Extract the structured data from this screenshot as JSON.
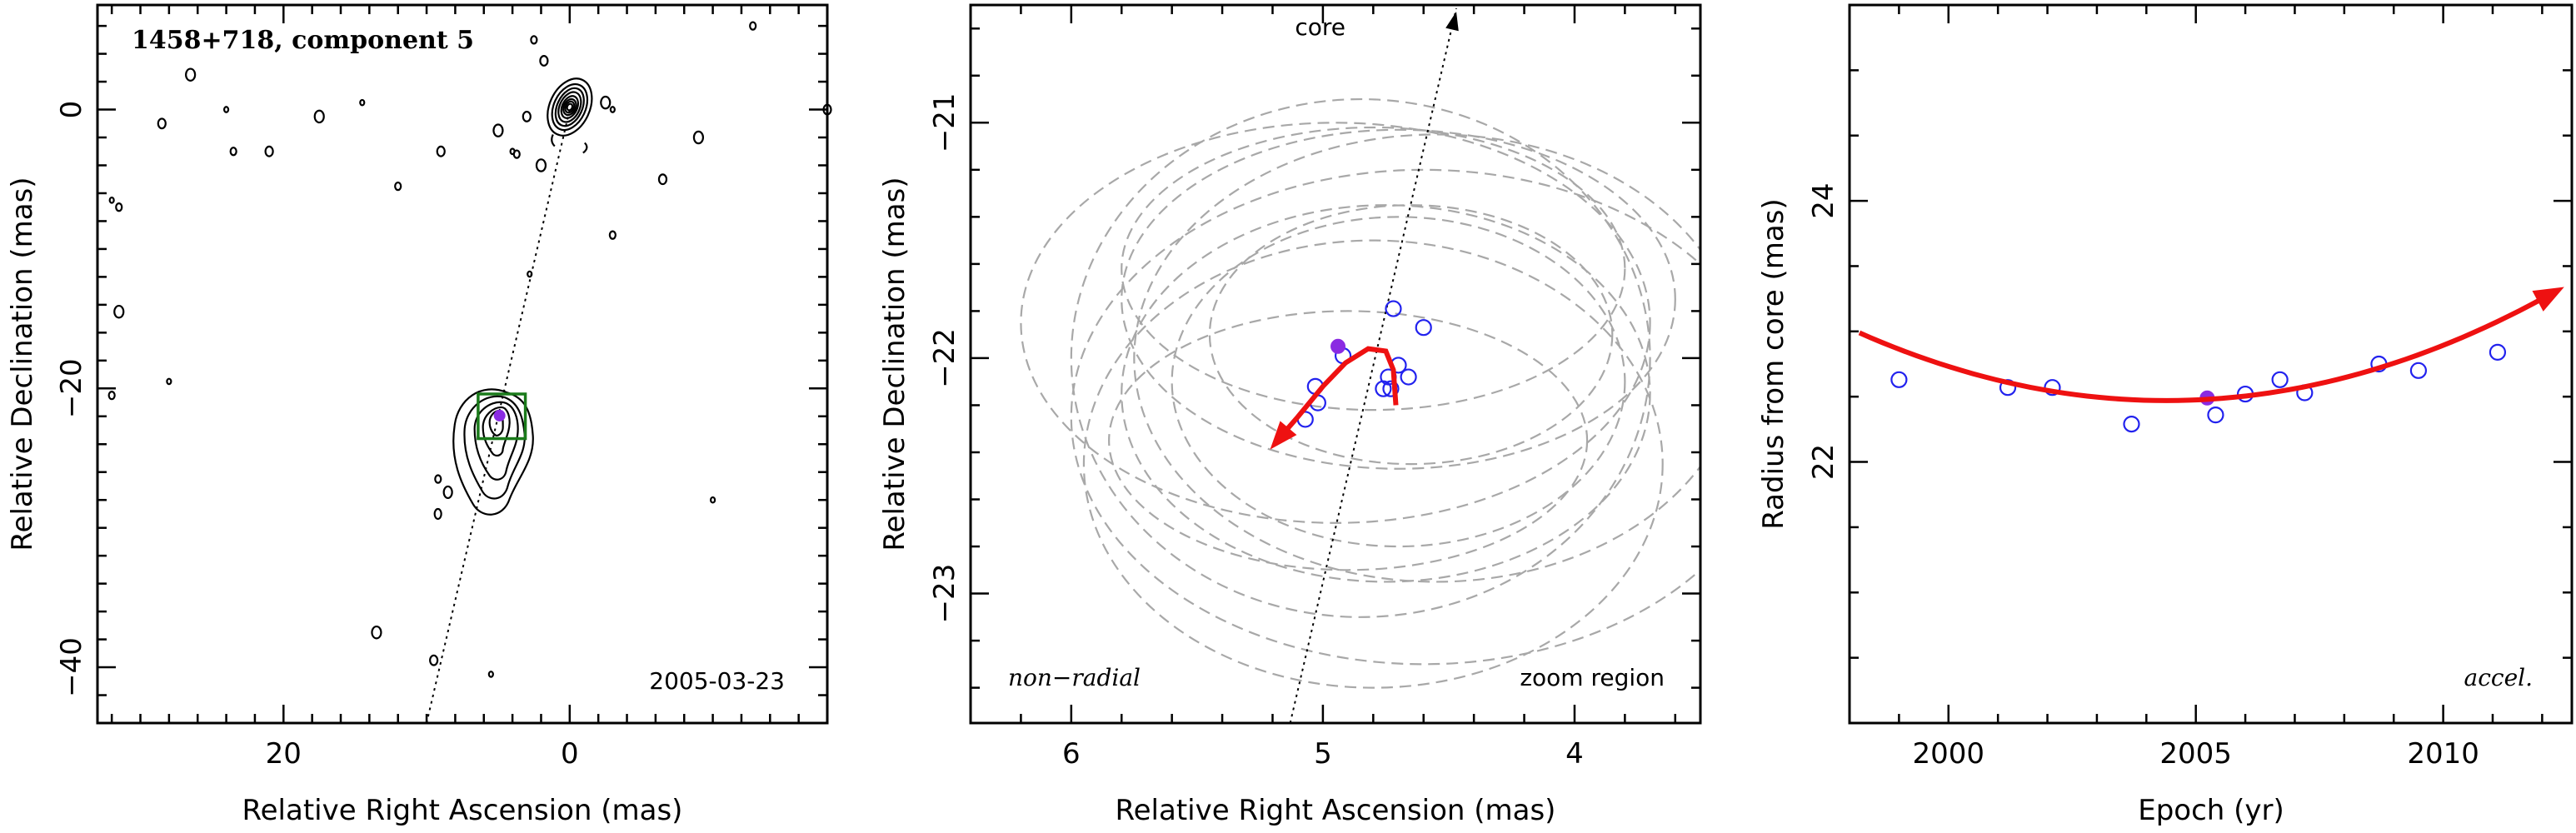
{
  "panels": {
    "left": {
      "title": "1458+718, component 5",
      "date": "2005-03-23",
      "xlabel": "Relative Right Ascension (mas)",
      "ylabel": "Relative Declination (mas)"
    },
    "middle": {
      "core_label": "core",
      "note_left": "non−radial",
      "note_right": "zoom region",
      "xlabel": "Relative Right Ascension (mas)",
      "ylabel": "Relative Declination (mas)"
    },
    "right": {
      "note": "accel.",
      "xlabel": "Epoch (yr)",
      "ylabel": "Radius from core (mas)"
    }
  },
  "colors": {
    "observation": "#2222ee",
    "highlight": "#8a2be2",
    "fit": "#ee1111",
    "beam_ellipse": "#a8a8a8",
    "zoom_box": "#1a7a1a"
  },
  "chart_data": [
    {
      "type": "scatter",
      "name": "vlba-map",
      "xlim": [
        33,
        -18
      ],
      "ylim": [
        -44,
        7.5
      ],
      "xticks": [
        20,
        0
      ],
      "xtick_labels": [
        "20",
        "0"
      ],
      "yticks": [
        0,
        -20,
        -40
      ],
      "ytick_labels": [
        "0",
        "−20",
        "−40"
      ],
      "core": [
        0,
        0
      ],
      "component_position": [
        4.9,
        -21.95
      ],
      "zoom_box": {
        "x": [
          3.1,
          6.4
        ],
        "y": [
          -20.4,
          -23.6
        ]
      },
      "pa_line": {
        "from": [
          10,
          -44
        ],
        "to": [
          0,
          0
        ]
      },
      "contour_specks": [
        [
          32,
          -6.5
        ],
        [
          31.5,
          -7
        ],
        [
          28.5,
          -1
        ],
        [
          26.5,
          2.5
        ],
        [
          24,
          0
        ],
        [
          23.5,
          -3
        ],
        [
          21,
          -3
        ],
        [
          17.5,
          -0.5
        ],
        [
          14.5,
          0.5
        ],
        [
          12,
          -5.5
        ],
        [
          9,
          -3
        ],
        [
          5,
          -1.5
        ],
        [
          4,
          -3
        ],
        [
          3.7,
          -3.2
        ],
        [
          3,
          -0.5
        ],
        [
          2,
          -4
        ],
        [
          2.8,
          -11.8
        ],
        [
          2.5,
          5
        ],
        [
          1.8,
          3.5
        ],
        [
          -2.5,
          0.5
        ],
        [
          -3,
          0
        ],
        [
          -3,
          -9
        ],
        [
          -6.5,
          -5
        ],
        [
          -9,
          -2
        ],
        [
          -10,
          -28
        ],
        [
          -12.8,
          6
        ],
        [
          -18,
          0
        ],
        [
          31.5,
          -14.5
        ],
        [
          28,
          -19.5
        ],
        [
          32,
          -20.5
        ],
        [
          9.5,
          -39.5
        ],
        [
          13.5,
          -37.5
        ],
        [
          5.5,
          -40.5
        ],
        [
          9.2,
          -26.5
        ]
      ]
    },
    {
      "type": "scatter",
      "name": "zoom-trajectory",
      "xlim": [
        6.4,
        3.5
      ],
      "ylim": [
        -23.55,
        -20.5
      ],
      "xticks": [
        6,
        5,
        4
      ],
      "xtick_labels": [
        "6",
        "5",
        "4"
      ],
      "yticks": [
        -21,
        -22,
        -23
      ],
      "ytick_labels": [
        "−21",
        "−22",
        "−23"
      ],
      "points": [
        {
          "x": 4.72,
          "y": -21.79
        },
        {
          "x": 4.6,
          "y": -21.87
        },
        {
          "x": 4.92,
          "y": -21.99
        },
        {
          "x": 4.7,
          "y": -22.03
        },
        {
          "x": 4.66,
          "y": -22.08
        },
        {
          "x": 4.74,
          "y": -22.08
        },
        {
          "x": 5.03,
          "y": -22.12
        },
        {
          "x": 4.76,
          "y": -22.13
        },
        {
          "x": 4.73,
          "y": -22.13
        },
        {
          "x": 5.02,
          "y": -22.19
        },
        {
          "x": 5.07,
          "y": -22.26
        }
      ],
      "highlight": {
        "x": 4.94,
        "y": -21.95
      },
      "fit_path": [
        [
          4.71,
          -22.2
        ],
        [
          4.72,
          -22.05
        ],
        [
          4.75,
          -21.97
        ],
        [
          4.82,
          -21.96
        ],
        [
          4.91,
          -22.02
        ],
        [
          5.0,
          -22.12
        ],
        [
          5.1,
          -22.25
        ],
        [
          5.19,
          -22.36
        ]
      ],
      "beam_ellipses": [
        {
          "cx": 4.7,
          "cy": -21.75,
          "rx": 1.1,
          "ry": 0.72
        },
        {
          "cx": 4.8,
          "cy": -21.62,
          "rx": 1.0,
          "ry": 0.6
        },
        {
          "cx": 4.85,
          "cy": -22.0,
          "rx": 1.15,
          "ry": 1.1
        },
        {
          "cx": 4.75,
          "cy": -22.15,
          "rx": 1.05,
          "ry": 0.8
        },
        {
          "cx": 4.6,
          "cy": -22.25,
          "rx": 1.4,
          "ry": 1.05
        },
        {
          "cx": 4.9,
          "cy": -22.35,
          "rx": 0.95,
          "ry": 0.55
        },
        {
          "cx": 4.7,
          "cy": -22.1,
          "rx": 0.9,
          "ry": 0.7
        },
        {
          "cx": 4.95,
          "cy": -21.85,
          "rx": 1.25,
          "ry": 0.85
        },
        {
          "cx": 4.55,
          "cy": -22.0,
          "rx": 1.2,
          "ry": 0.95
        },
        {
          "cx": 4.8,
          "cy": -22.45,
          "rx": 1.15,
          "ry": 0.95
        },
        {
          "cx": 4.65,
          "cy": -21.9,
          "rx": 0.8,
          "ry": 0.55
        }
      ],
      "pa_line": {
        "from": [
          5.13,
          -23.55
        ],
        "to": [
          4.47,
          -20.5
        ]
      }
    },
    {
      "type": "scatter",
      "name": "radius-vs-epoch",
      "xlim": [
        1998,
        2012.6
      ],
      "ylim": [
        20.0,
        25.5
      ],
      "xticks": [
        2000,
        2005,
        2010
      ],
      "xtick_labels": [
        "2000",
        "2005",
        "2010"
      ],
      "yticks": [
        22,
        24
      ],
      "ytick_labels": [
        "22",
        "24"
      ],
      "points": [
        {
          "x": 1999.0,
          "y": 22.63
        },
        {
          "x": 2001.2,
          "y": 22.57
        },
        {
          "x": 2002.1,
          "y": 22.57
        },
        {
          "x": 2003.7,
          "y": 22.29
        },
        {
          "x": 2005.4,
          "y": 22.36
        },
        {
          "x": 2006.0,
          "y": 22.52
        },
        {
          "x": 2006.7,
          "y": 22.63
        },
        {
          "x": 2007.2,
          "y": 22.53
        },
        {
          "x": 2008.7,
          "y": 22.75
        },
        {
          "x": 2009.5,
          "y": 22.7
        },
        {
          "x": 2011.1,
          "y": 22.84
        }
      ],
      "highlight": {
        "x": 2005.23,
        "y": 22.49
      },
      "fit": {
        "x0": 2004.4,
        "y0": 22.47,
        "a": 0.0135,
        "start": 1998.2,
        "end": 2012.0
      }
    }
  ]
}
